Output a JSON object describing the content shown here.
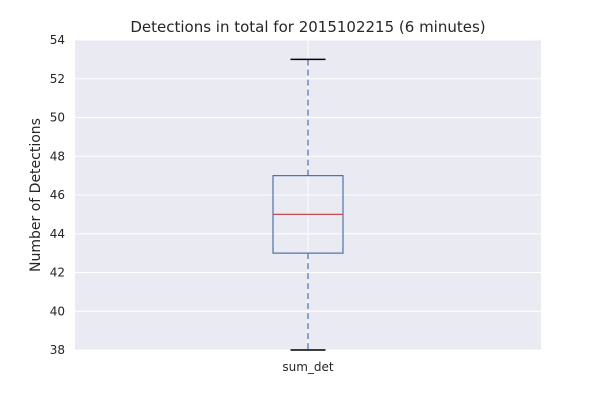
{
  "chart_data": {
    "type": "box",
    "title": "Detections in total for 2015102215 (6 minutes)",
    "xlabel": "",
    "ylabel": "Number of Detections",
    "categories": [
      "sum_det"
    ],
    "ylim": [
      38,
      54
    ],
    "yticks": [
      38,
      40,
      42,
      44,
      46,
      48,
      50,
      52,
      54
    ],
    "grid": true,
    "box": {
      "min": 38,
      "q1": 43,
      "median": 45,
      "q3": 47,
      "max": 53
    },
    "colors": {
      "background": "#eaeaf2",
      "grid": "#ffffff",
      "box": "#4c72b0",
      "median": "#c44e52",
      "whisker_cap": "#000000"
    }
  }
}
